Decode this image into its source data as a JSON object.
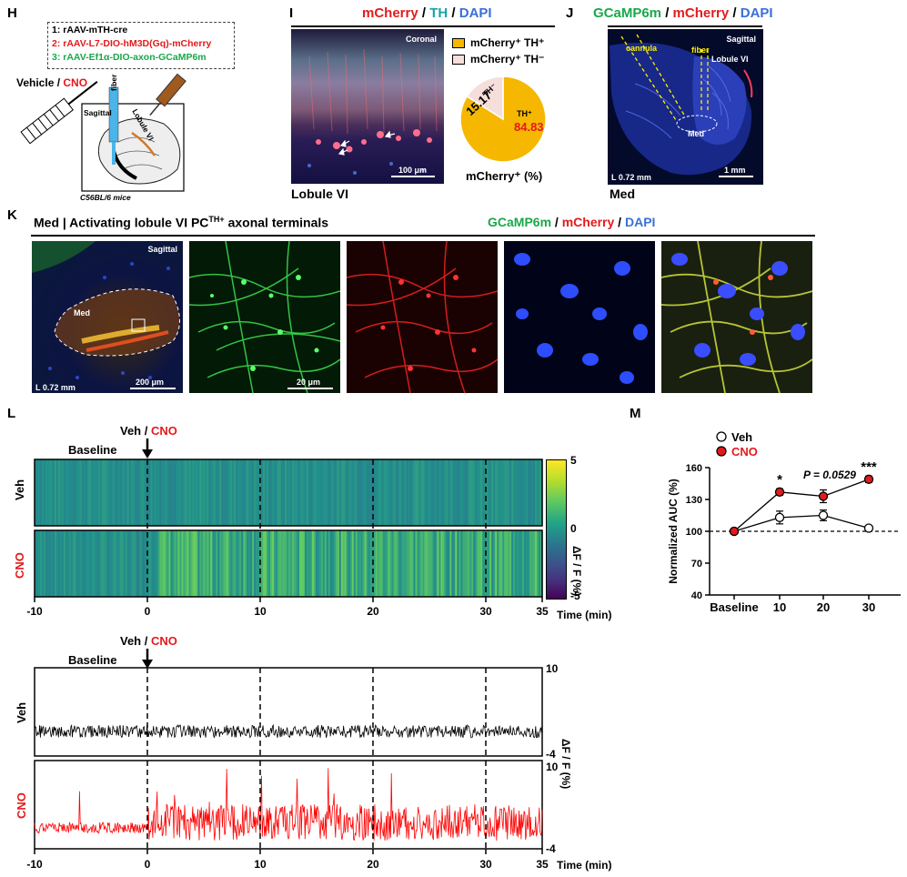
{
  "panels": {
    "H": {
      "letter": "H",
      "constructs": [
        "1: rAAV-mTH-cre",
        "2: rAAV-L7-DIO-hM3D(Gq)-mCherry",
        "3: rAAV-Ef1α-DIO-axon-GCaMP6m"
      ],
      "injection_label_prefix": "Vehicle /",
      "injection_label_suffix": "CNO",
      "sagittal": "Sagittal",
      "fiber": "fiber",
      "lobule": "Lobule VI",
      "mice": "C56BL/6 mice"
    },
    "I": {
      "letter": "I",
      "title_parts": [
        "mCherry",
        " / ",
        "TH",
        " / ",
        "DAPI"
      ],
      "coronal": "Coronal",
      "scale": "100 μm",
      "caption": "Lobule VI",
      "legend": [
        "mCherry⁺ TH⁺",
        "mCherry⁺ TH⁻"
      ],
      "pie_label_pos": "TH⁺",
      "pie_value_pos": "84.83",
      "pie_label_neg": "TH⁻",
      "pie_value_neg": "15.17",
      "pie_xlabel": "mCherry⁺ (%)"
    },
    "J": {
      "letter": "J",
      "title_parts": [
        "GCaMP6m",
        " / ",
        "mCherry",
        " / ",
        "DAPI"
      ],
      "sagittal": "Sagittal",
      "cannula": "cannula",
      "fiber": "fiber",
      "lobule": "Lobule VI",
      "med": "Med",
      "lat": "L 0.72 mm",
      "scale": "1 mm",
      "caption": "Med"
    },
    "K": {
      "letter": "K",
      "title": "Med | Activating lobule VI PC",
      "title_sup": "TH+",
      "title_tail": " axonal terminals",
      "channels": [
        "GCaMP6m",
        " / ",
        "mCherry",
        " / ",
        "DAPI"
      ],
      "sagittal": "Sagittal",
      "med": "Med",
      "lat": "L 0.72 mm",
      "scale1": "200 μm",
      "scale2": "20 μm"
    },
    "L": {
      "letter": "L",
      "veh_cno_prefix": "Veh /",
      "veh_cno_suffix": "CNO",
      "baseline": "Baseline",
      "row_veh": "Veh",
      "row_cno": "CNO",
      "xticks": [
        "-10",
        "0",
        "10",
        "20",
        "30",
        "35"
      ],
      "xlabel": "Time (min)",
      "colorbar_ticks": [
        "5",
        "0",
        "-5"
      ],
      "colorbar_label": "ΔF / F (%)",
      "trace_yticks": [
        "10",
        "-4",
        "10",
        "-4"
      ],
      "trace_ylabel": "ΔF / F (%)"
    },
    "M": {
      "letter": "M"
    }
  },
  "chart_data": {
    "type": "line",
    "title": "",
    "xlabel": "",
    "ylabel": "Normalized AUC (%)",
    "categories": [
      "Baseline",
      "10",
      "20",
      "30"
    ],
    "ylim": [
      40,
      160
    ],
    "yticks": [
      40,
      70,
      100,
      130,
      160
    ],
    "series": [
      {
        "name": "Veh",
        "values": [
          100,
          113,
          115,
          103
        ],
        "errors": [
          0,
          6,
          5,
          2
        ],
        "color": "#ffffff"
      },
      {
        "name": "CNO",
        "values": [
          100,
          137,
          133,
          149
        ],
        "errors": [
          0,
          3,
          6,
          3
        ],
        "color": "#e31a1c"
      }
    ],
    "annotations": [
      "*",
      "P = 0.0529",
      "***"
    ],
    "reference_line": 100
  }
}
